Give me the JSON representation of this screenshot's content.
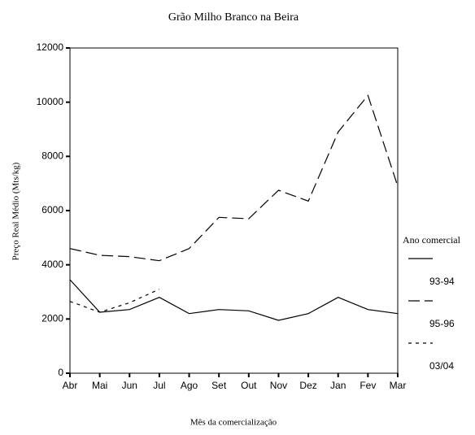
{
  "chart_data": {
    "type": "line",
    "title": "Grão Milho Branco na Beira",
    "x_label": "Mês da comercialização",
    "y_label": "Preço Real Médio (Mts/kg)",
    "legend_title": "Ano comercial",
    "categories": [
      "Abr",
      "Mai",
      "Jun",
      "Jul",
      "Ago",
      "Set",
      "Out",
      "Nov",
      "Dez",
      "Jan",
      "Fev",
      "Mar"
    ],
    "series": [
      {
        "name": "93-94",
        "color": "#000000",
        "dash": "solid",
        "values": [
          3450,
          2250,
          2350,
          2800,
          2200,
          2350,
          2300,
          1950,
          2200,
          2800,
          2350,
          2200
        ]
      },
      {
        "name": "95-96",
        "color": "#000000",
        "dash": "dashed",
        "values": [
          4600,
          4350,
          4300,
          4150,
          4600,
          5750,
          5700,
          6750,
          6350,
          8900,
          10250,
          6900
        ]
      },
      {
        "name": "03/04",
        "color": "#000000",
        "dash": "dotted",
        "values": [
          2650,
          2250,
          2600,
          3100,
          null,
          null,
          null,
          null,
          null,
          null,
          null,
          null
        ]
      }
    ],
    "ylim": [
      0,
      12000
    ],
    "yticks": [
      0,
      2000,
      4000,
      6000,
      8000,
      10000,
      12000
    ],
    "grid": false,
    "legend": "right"
  }
}
